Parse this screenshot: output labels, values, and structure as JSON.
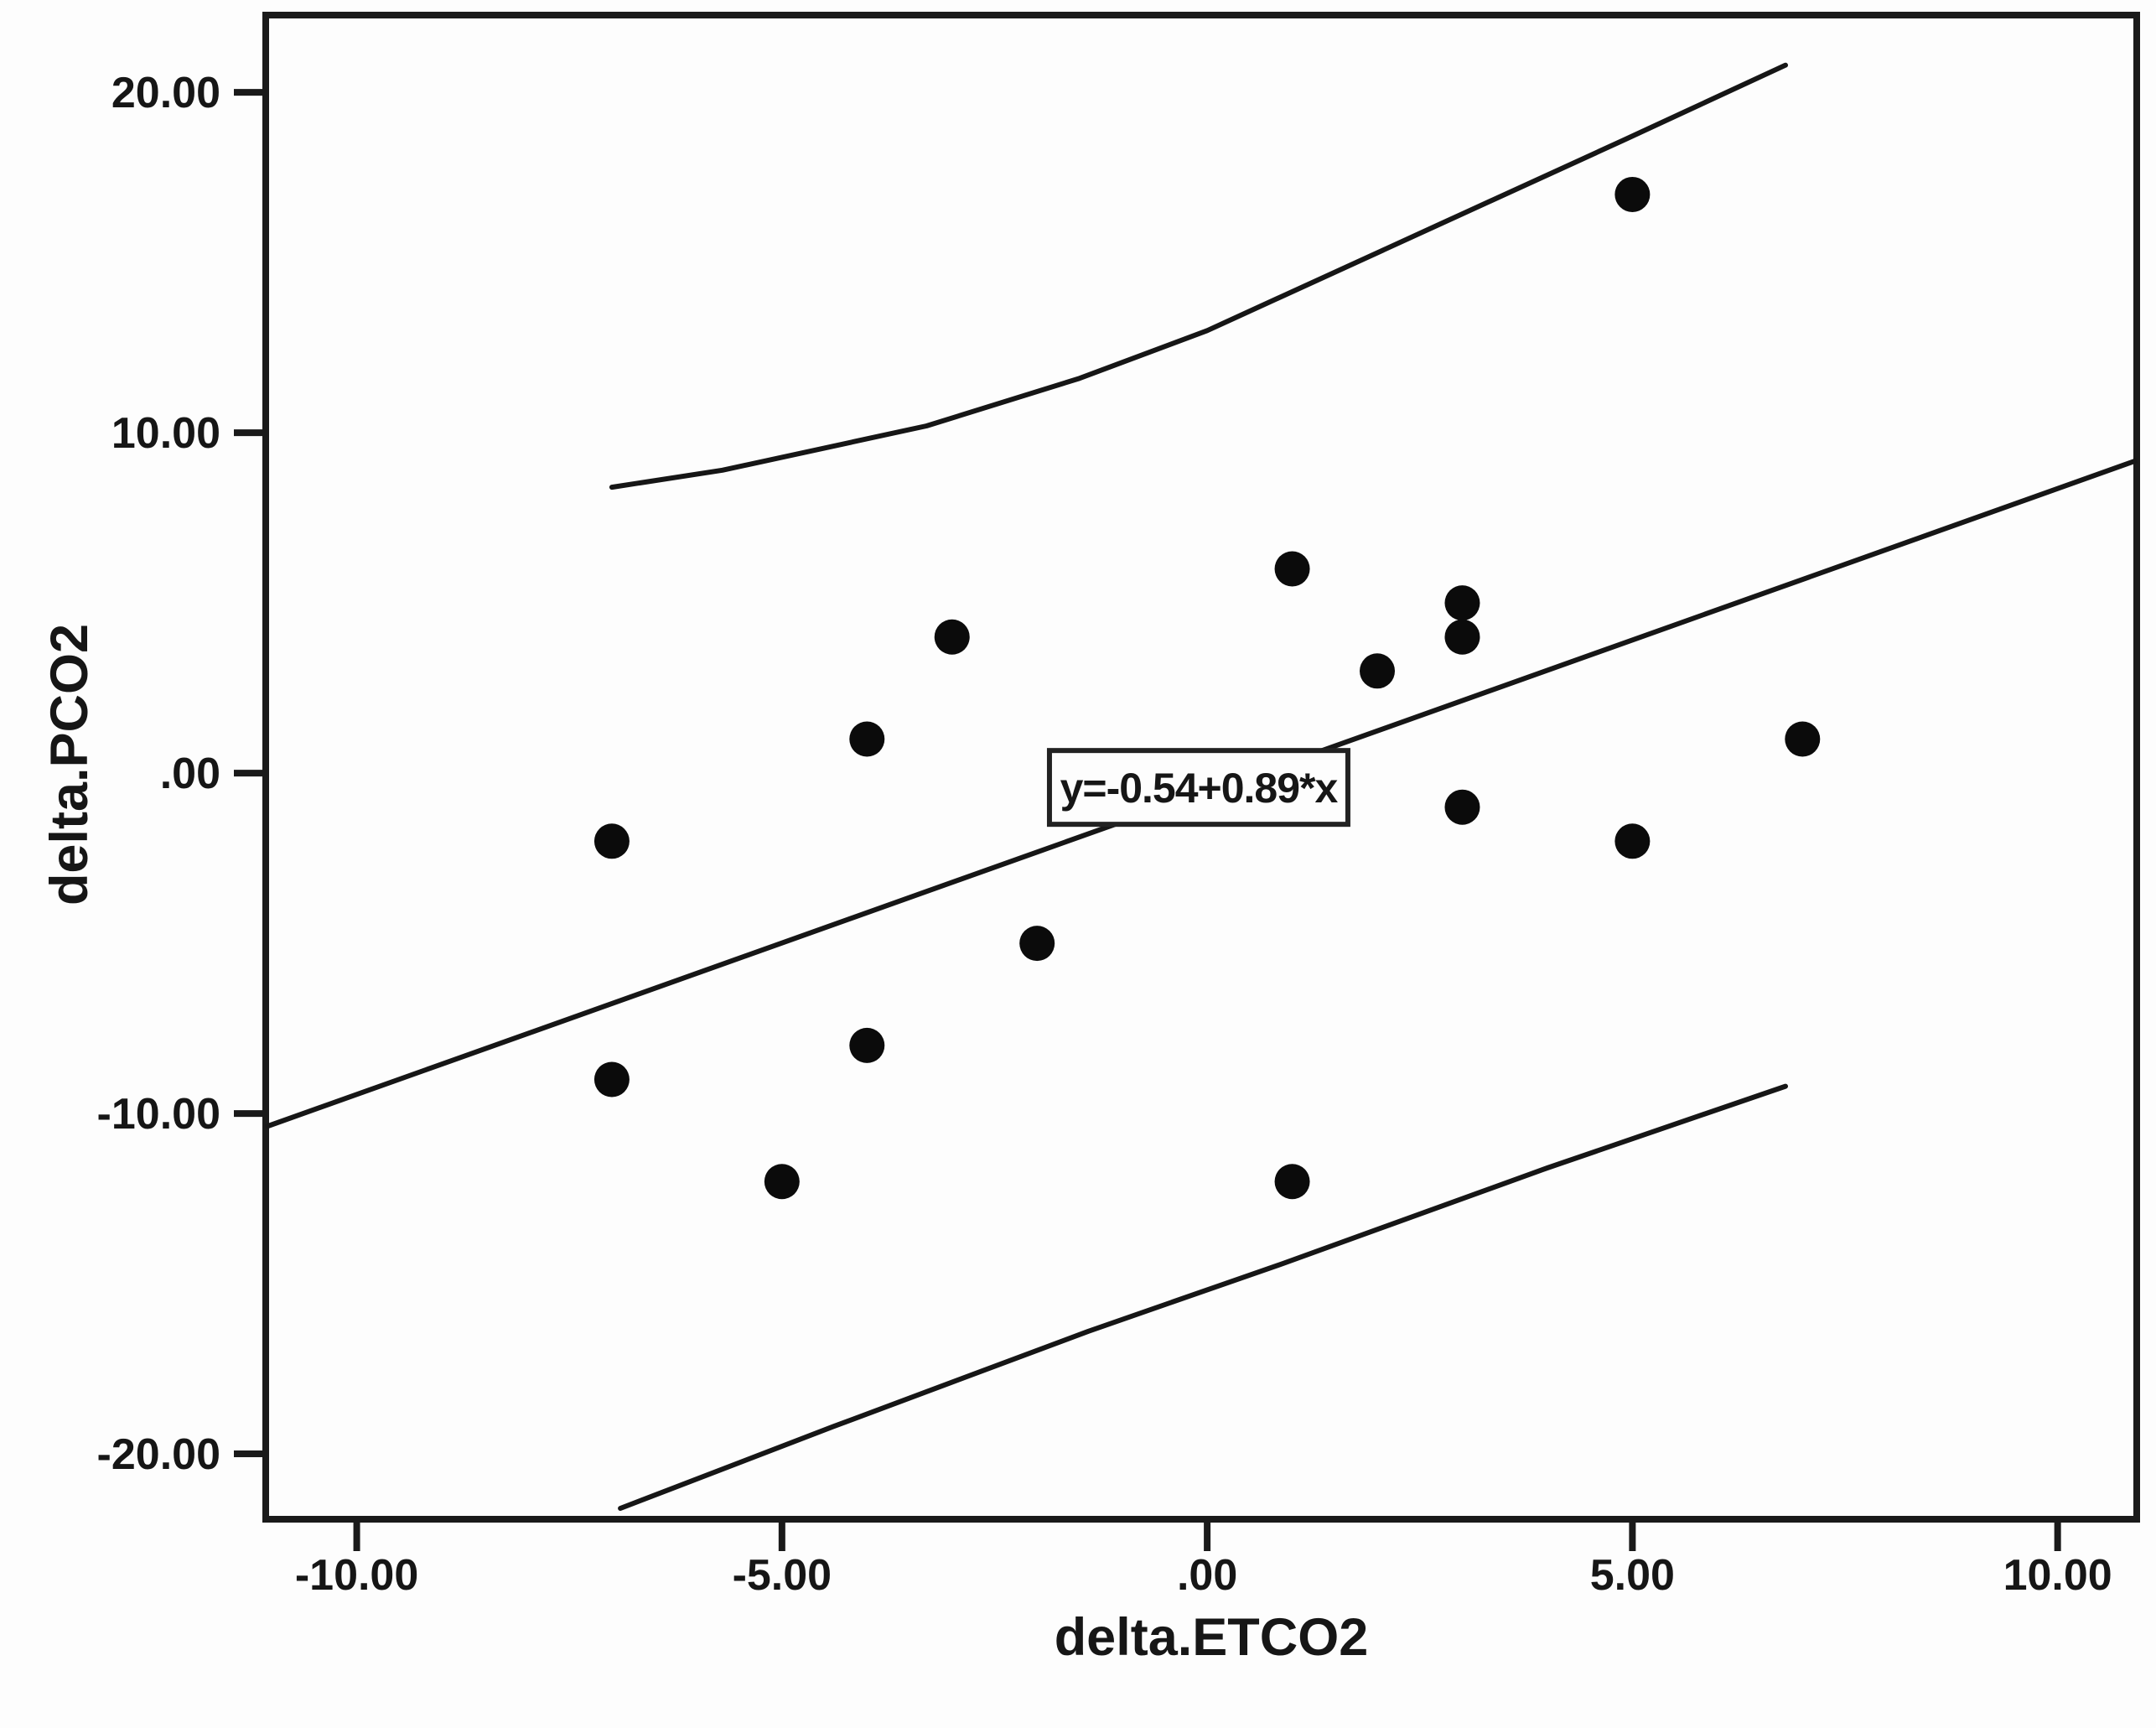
{
  "figure": {
    "background_color": "#fdfdfd",
    "ink_color": "#161616",
    "frame_color": "#1a1a1a"
  },
  "chart_data": {
    "type": "scatter",
    "title": "",
    "xlabel": "delta.ETCO2",
    "ylabel": "delta.PCO2",
    "xlim": [
      -11.07,
      10.93
    ],
    "ylim": [
      -21.92,
      22.27
    ],
    "grid": false,
    "legend_position": "none",
    "x_ticks": [
      {
        "value": -10,
        "label": "-10.00"
      },
      {
        "value": -5,
        "label": "-5.00"
      },
      {
        "value": 0,
        "label": ".00"
      },
      {
        "value": 5,
        "label": "5.00"
      },
      {
        "value": 10,
        "label": "10.00"
      }
    ],
    "y_ticks": [
      {
        "value": 20,
        "label": "20.00"
      },
      {
        "value": 10,
        "label": "10.00"
      },
      {
        "value": 0,
        "label": ".00"
      },
      {
        "value": -10,
        "label": "-10.00"
      },
      {
        "value": -20,
        "label": "-20.00"
      }
    ],
    "points": [
      {
        "x": 5,
        "y": 17
      },
      {
        "x": 1,
        "y": 6
      },
      {
        "x": 3,
        "y": 5
      },
      {
        "x": 3,
        "y": 4
      },
      {
        "x": 2,
        "y": 3
      },
      {
        "x": -3,
        "y": 4
      },
      {
        "x": -4,
        "y": 1
      },
      {
        "x": 7,
        "y": 1
      },
      {
        "x": 3,
        "y": -1
      },
      {
        "x": -7,
        "y": -2
      },
      {
        "x": 5,
        "y": -2
      },
      {
        "x": -2,
        "y": -5
      },
      {
        "x": -4,
        "y": -8
      },
      {
        "x": -7,
        "y": -9
      },
      {
        "x": -5,
        "y": -12
      },
      {
        "x": 1,
        "y": -12
      }
    ],
    "regression": {
      "equation_label": "y=-0.54+0.89*x",
      "intercept": -0.54,
      "slope": 0.89,
      "label_anchor": {
        "x": -0.1,
        "y": -0.42
      }
    },
    "ci_upper": [
      [
        -7.0,
        8.4
      ],
      [
        -5.7,
        8.9
      ],
      [
        -3.3,
        10.2
      ],
      [
        -1.5,
        11.6
      ],
      [
        0.0,
        13.0
      ],
      [
        2.8,
        16.2
      ],
      [
        4.9,
        18.6
      ],
      [
        6.8,
        20.8
      ]
    ],
    "ci_lower": [
      [
        -6.9,
        -21.6
      ],
      [
        -4.4,
        -19.2
      ],
      [
        -1.4,
        -16.4
      ],
      [
        0.9,
        -14.4
      ],
      [
        4.0,
        -11.6
      ],
      [
        6.8,
        -9.2
      ]
    ]
  }
}
